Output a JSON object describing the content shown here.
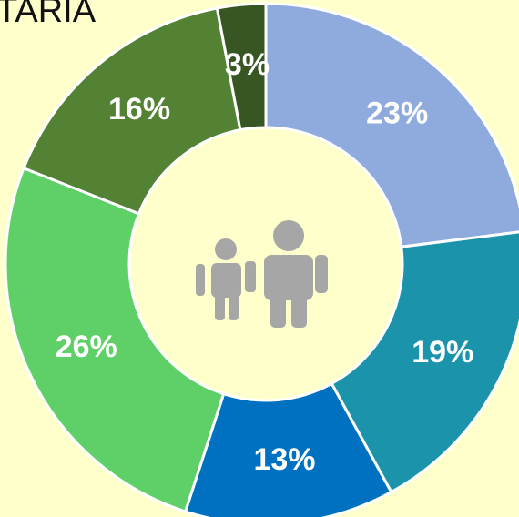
{
  "chart_data": {
    "type": "donut",
    "title": "TARIA",
    "categories": [
      null,
      null,
      null,
      null,
      null,
      null
    ],
    "values": [
      23,
      19,
      13,
      26,
      16,
      3
    ],
    "value_labels": [
      "23%",
      "19%",
      "13%",
      "26%",
      "16%",
      "3%"
    ],
    "colors": [
      "#8faadc",
      "#1b94ab",
      "#0070c0",
      "#5fd068",
      "#548235",
      "#375623"
    ]
  }
}
